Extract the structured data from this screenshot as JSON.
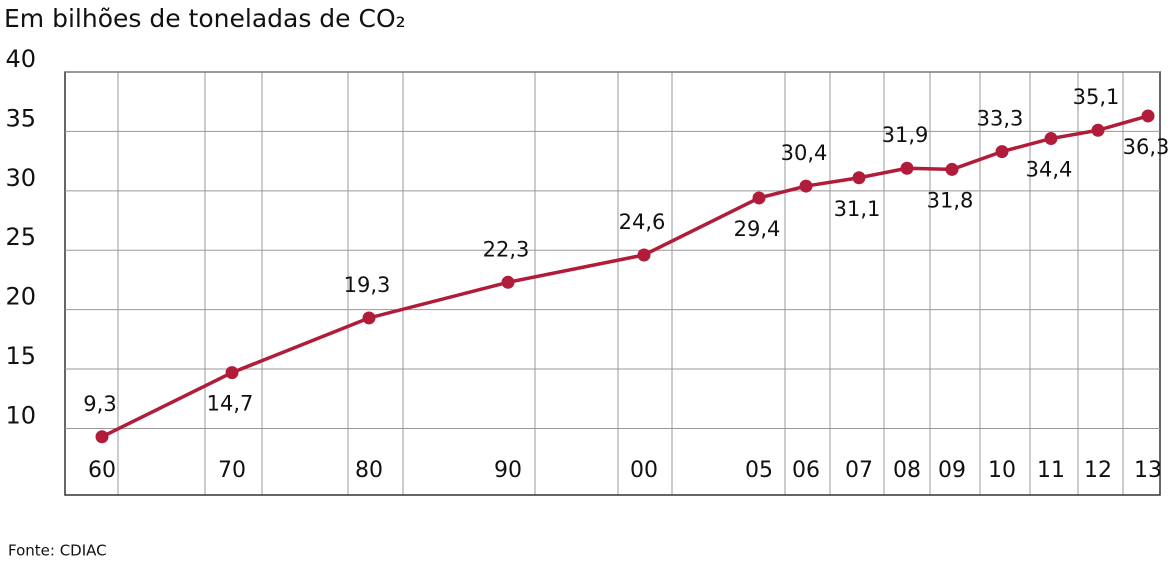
{
  "chart_data": {
    "type": "line",
    "title": "Em bilhões de toneladas de CO₂",
    "source": "Fonte: CDIAC",
    "categories": [
      "60",
      "70",
      "80",
      "90",
      "00",
      "05",
      "06",
      "07",
      "08",
      "09",
      "10",
      "11",
      "12",
      "13"
    ],
    "series": [
      {
        "color": "#b01c3a",
        "values": [
          9.3,
          14.7,
          19.3,
          22.3,
          24.6,
          29.4,
          30.4,
          31.1,
          31.9,
          31.8,
          33.3,
          34.4,
          35.1,
          36.3
        ],
        "value_labels": [
          "9,3",
          "14,7",
          "19,3",
          "22,3",
          "24,6",
          "29,4",
          "30,4",
          "31,1",
          "31,9",
          "31,8",
          "33,3",
          "34,4",
          "35,1",
          "36,3"
        ]
      }
    ],
    "ylim": [
      4.4,
      40
    ],
    "yticks": [
      10,
      15,
      20,
      25,
      30,
      35,
      40
    ],
    "grid": true
  }
}
